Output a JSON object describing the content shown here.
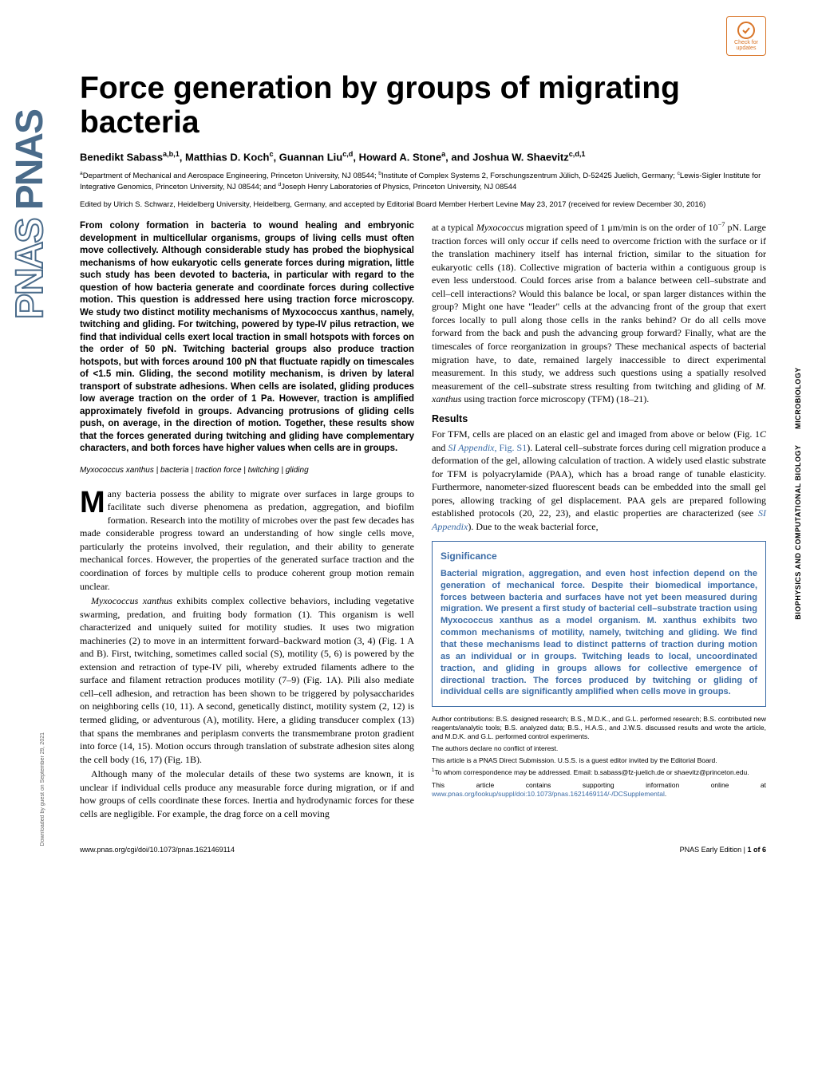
{
  "colors": {
    "journal_side": "#4a6b8a",
    "badge": "#d97528",
    "link": "#3b6ba5",
    "sig": "#3b6ba5"
  },
  "badge": {
    "line1": "Check for",
    "line2": "updates"
  },
  "side_journal": "PNAS",
  "title": "Force generation by groups of migrating bacteria",
  "authors_html": "Benedikt Sabass<sup>a,b,1</sup>, Matthias D. Koch<sup>c</sup>, Guannan Liu<sup>c,d</sup>, Howard A. Stone<sup>a</sup>, and Joshua W. Shaevitz<sup>c,d,1</sup>",
  "affiliations_html": "<sup>a</sup>Department of Mechanical and Aerospace Engineering, Princeton University, NJ 08544; <sup>b</sup>Institute of Complex Systems 2, Forschungszentrum Jülich, D-52425 Juelich, Germany; <sup>c</sup>Lewis-Sigler Institute for Integrative Genomics, Princeton University, NJ 08544; and <sup>d</sup>Joseph Henry Laboratories of Physics, Princeton University, NJ 08544",
  "editor_line": "Edited by Ulrich S. Schwarz, Heidelberg University, Heidelberg, Germany, and accepted by Editorial Board Member Herbert Levine May 23, 2017 (received for review December 30, 2016)",
  "abstract": "From colony formation in bacteria to wound healing and embryonic development in multicellular organisms, groups of living cells must often move collectively. Although considerable study has probed the biophysical mechanisms of how eukaryotic cells generate forces during migration, little such study has been devoted to bacteria, in particular with regard to the question of how bacteria generate and coordinate forces during collective motion. This question is addressed here using traction force microscopy. We study two distinct motility mechanisms of Myxococcus xanthus, namely, twitching and gliding. For twitching, powered by type-IV pilus retraction, we find that individual cells exert local traction in small hotspots with forces on the order of 50 pN. Twitching bacterial groups also produce traction hotspots, but with forces around 100 pN that fluctuate rapidly on timescales of <1.5 min. Gliding, the second motility mechanism, is driven by lateral transport of substrate adhesions. When cells are isolated, gliding produces low average traction on the order of 1 Pa. However, traction is amplified approximately fivefold in groups. Advancing protrusions of gliding cells push, on average, in the direction of motion. Together, these results show that the forces generated during twitching and gliding have complementary characters, and both forces have higher values when cells are in groups.",
  "keywords": "Myxococcus xanthus | bacteria | traction force | twitching | gliding",
  "intro": {
    "dropcap": "M",
    "para1": "any bacteria possess the ability to migrate over surfaces in large groups to facilitate such diverse phenomena as predation, aggregation, and biofilm formation. Research into the motility of microbes over the past few decades has made considerable progress toward an understanding of how single cells move, particularly the proteins involved, their regulation, and their ability to generate mechanical forces. However, the properties of the generated surface traction and the coordination of forces by multiple cells to produce coherent group motion remain unclear.",
    "para2": "Myxococcus xanthus exhibits complex collective behaviors, including vegetative swarming, predation, and fruiting body formation (1). This organism is well characterized and uniquely suited for motility studies. It uses two migration machineries (2) to move in an intermittent forward–backward motion (3, 4) (Fig. 1 A and B). First, twitching, sometimes called social (S), motility (5, 6) is powered by the extension and retraction of type-IV pili, whereby extruded filaments adhere to the surface and filament retraction produces motility (7–9) (Fig. 1A). Pili also mediate cell–cell adhesion, and retraction has been shown to be triggered by polysaccharides on neighboring cells (10, 11). A second, genetically distinct, motility system (2, 12) is termed gliding, or adventurous (A), motility. Here, a gliding transducer complex (13) that spans the membranes and periplasm converts the transmembrane proton gradient into force (14, 15). Motion occurs through translation of substrate adhesion sites along the cell body (16, 17) (Fig. 1B).",
    "para3": "Although many of the molecular details of these two systems are known, it is unclear if individual cells produce any measurable force during migration, or if and how groups of cells coordinate these forces. Inertia and hydrodynamic forces for these cells are negligible. For example, the drag force on a cell moving"
  },
  "col2_top_html": "at a typical <i>Myxococcus</i> migration speed of 1 μm/min is on the order of 10<sup>−7</sup> pN. Large traction forces will only occur if cells need to overcome friction with the surface or if the translation machinery itself has internal friction, similar to the situation for eukaryotic cells (18). Collective migration of bacteria within a contiguous group is even less understood. Could forces arise from a balance between cell–substrate and cell–cell interactions? Would this balance be local, or span larger distances within the group? Might one have \"leader\" cells at the advancing front of the group that exert forces locally to pull along those cells in the ranks behind? Or do all cells move forward from the back and push the advancing group forward? Finally, what are the timescales of force reorganization in groups? These mechanical aspects of bacterial migration have, to date, remained largely inaccessible to direct experimental measurement. In this study, we address such questions using a spatially resolved measurement of the cell–substrate stress resulting from twitching and gliding of <i>M. xanthus</i> using traction force microscopy (TFM) (18–21).",
  "results": {
    "head": "Results",
    "para1_html": "For TFM, cells are placed on an elastic gel and imaged from above or below (Fig. 1<i>C</i> and <span class='link'><i>SI Appendix</i>, Fig. S1</span>). Lateral cell–substrate forces during cell migration produce a deformation of the gel, allowing calculation of traction. A widely used elastic substrate for TFM is polyacrylamide (PAA), which has a broad range of tunable elasticity. Furthermore, nanometer-sized fluorescent beads can be embedded into the small gel pores, allowing tracking of gel displacement. PAA gels are prepared following established protocols (20, 22, 23), and elastic properties are characterized (see <span class='link'><i>SI Appendix</i></span>). Due to the weak bacterial force,"
  },
  "significance": {
    "head": "Significance",
    "body": "Bacterial migration, aggregation, and even host infection depend on the generation of mechanical force. Despite their biomedical importance, forces between bacteria and surfaces have not yet been measured during migration. We present a first study of bacterial cell–substrate traction using Myxococcus xanthus as a model organism. M. xanthus exhibits two common mechanisms of motility, namely, twitching and gliding. We find that these mechanisms lead to distinct patterns of traction during motion as an individual or in groups. Twitching leads to local, uncoordinated traction, and gliding in groups allows for collective emergence of directional traction. The forces produced by twitching or gliding of individual cells are significantly amplified when cells move in groups."
  },
  "footnotes": {
    "contrib": "Author contributions: B.S. designed research; B.S., M.D.K., and G.L. performed research; B.S. contributed new reagents/analytic tools; B.S. analyzed data; B.S., H.A.S., and J.W.S. discussed results and wrote the article, and M.D.K. and G.L. performed control experiments.",
    "conflict": "The authors declare no conflict of interest.",
    "submission": "This article is a PNAS Direct Submission. U.S.S. is a guest editor invited by the Editorial Board.",
    "corresp_html": "<sup>1</sup>To whom correspondence may be addressed. Email: b.sabass@fz-juelich.de or shaevitz@princeton.edu.",
    "supporting_html": "This article contains supporting information online at <span class='link'>www.pnas.org/lookup/suppl/doi:10.1073/pnas.1621469114/-/DCSupplemental</span>."
  },
  "footer": {
    "left": "www.pnas.org/cgi/doi/10.1073/pnas.1621469114",
    "right_html": "PNAS Early Edition | <b>1 of 6</b>"
  },
  "side_categories": {
    "cat1": "BIOPHYSICS AND COMPUTATIONAL BIOLOGY",
    "cat2": "MICROBIOLOGY"
  },
  "download_note": "Downloaded by guest on September 29, 2021"
}
